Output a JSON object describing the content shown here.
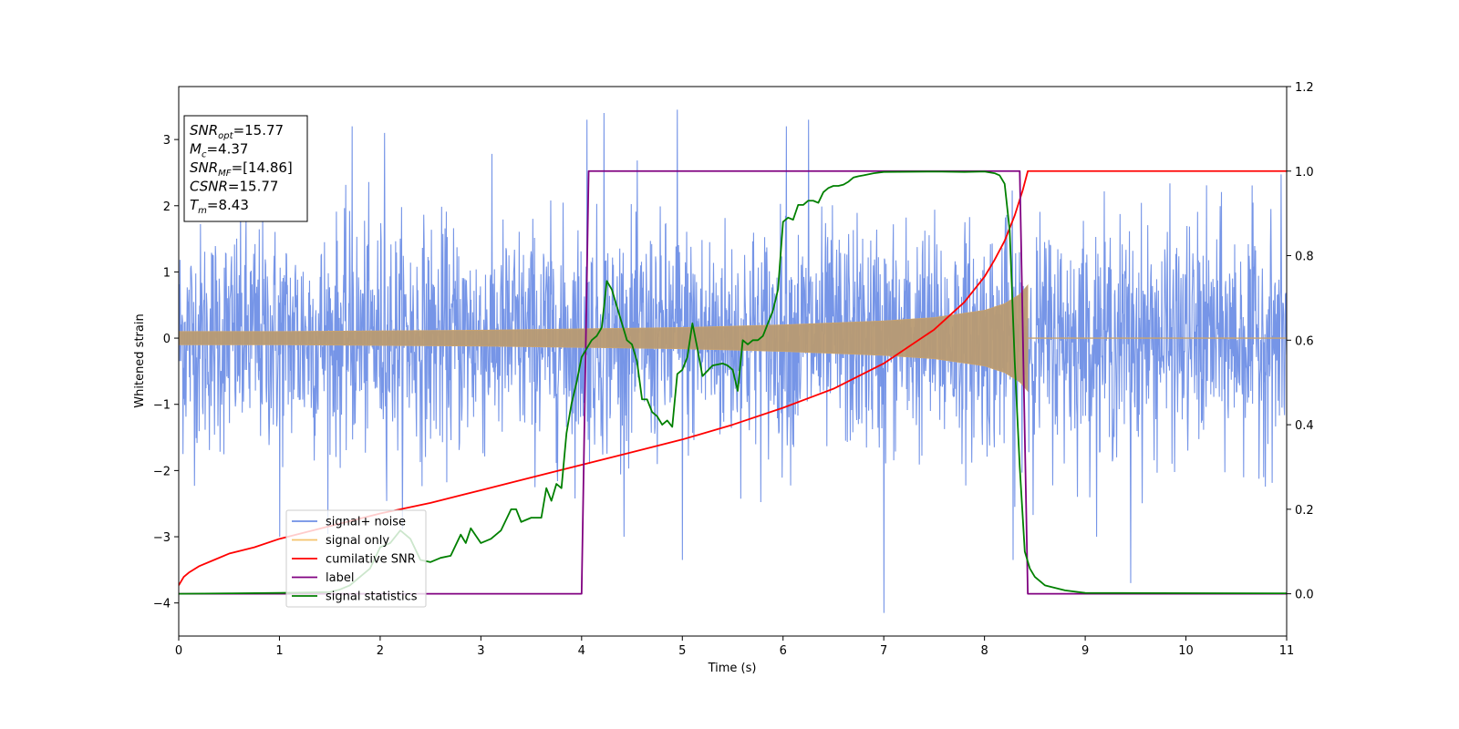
{
  "chart_data": {
    "type": "line",
    "title": "",
    "xlabel": "Time (s)",
    "ylabel": "Whitened strain",
    "y2label": "",
    "xlim": [
      0,
      11
    ],
    "ylim": [
      -4.5,
      3.8
    ],
    "y2lim": [
      -0.1,
      1.2
    ],
    "x_ticks": [
      0,
      1,
      2,
      3,
      4,
      5,
      6,
      7,
      8,
      9,
      10,
      11
    ],
    "y_ticks": [
      -4,
      -3,
      -2,
      -1,
      0,
      1,
      2,
      3
    ],
    "y2_ticks": [
      0.0,
      0.2,
      0.4,
      0.6,
      0.8,
      1.0,
      1.2
    ],
    "x_tick_labels": [
      "0",
      "1",
      "2",
      "3",
      "4",
      "5",
      "6",
      "7",
      "8",
      "9",
      "10",
      "11"
    ],
    "y_tick_labels": [
      "−4",
      "−3",
      "−2",
      "−1",
      "0",
      "1",
      "2",
      "3"
    ],
    "y2_tick_labels": [
      "0.0",
      "0.2",
      "0.4",
      "0.6",
      "0.8",
      "1.0",
      "1.2"
    ],
    "grid": false,
    "legend_position": "lower-left",
    "annotation": {
      "position": "top-left",
      "lines": [
        {
          "base": "SNR",
          "sub": "opt",
          "value": "=15.77"
        },
        {
          "base": "M",
          "sub": "c",
          "value": "=4.37"
        },
        {
          "base": "SNR",
          "sub": "MF",
          "value": "=[14.86]"
        },
        {
          "base": "CSNR",
          "sub": "",
          "value": "=15.77"
        },
        {
          "base": "T",
          "sub": "m",
          "value": "=8.43"
        }
      ]
    },
    "series": [
      {
        "name": "signal+ noise",
        "axis": "left",
        "color": "#6f8fe6",
        "kind": "noise",
        "noise_std": 0.85,
        "x_range": [
          0,
          11
        ],
        "peaks": [
          [
            1.72,
            3.2
          ],
          [
            2.04,
            3.1
          ],
          [
            4.05,
            3.3
          ],
          [
            4.22,
            3.4
          ],
          [
            4.95,
            3.45
          ],
          [
            6.25,
            3.3
          ],
          [
            6.03,
            3.2
          ],
          [
            9.45,
            -3.7
          ],
          [
            7.0,
            -4.15
          ],
          [
            8.28,
            -3.35
          ],
          [
            1.0,
            -3.0
          ],
          [
            5.0,
            -3.35
          ]
        ]
      },
      {
        "name": "signal only",
        "axis": "left",
        "color": "#f5c36b",
        "kind": "chirp",
        "x": [
          0.0,
          1.0,
          2.0,
          3.0,
          4.0,
          5.0,
          6.0,
          7.0,
          7.5,
          8.0,
          8.2,
          8.35,
          8.43
        ],
        "envelope": [
          0.1,
          0.1,
          0.11,
          0.12,
          0.14,
          0.16,
          0.2,
          0.26,
          0.31,
          0.42,
          0.52,
          0.66,
          0.8
        ],
        "after": 0.0
      },
      {
        "name": "cumilative SNR",
        "axis": "right",
        "color": "#ff0000",
        "x": [
          0.0,
          0.05,
          0.1,
          0.2,
          0.35,
          0.5,
          0.75,
          1.0,
          1.5,
          2.0,
          2.5,
          3.0,
          3.5,
          4.0,
          4.5,
          5.0,
          5.5,
          6.0,
          6.5,
          7.0,
          7.5,
          7.8,
          8.0,
          8.1,
          8.2,
          8.3,
          8.38,
          8.43,
          8.5,
          11.0
        ],
        "y": [
          0.02,
          0.04,
          0.05,
          0.065,
          0.08,
          0.095,
          0.11,
          0.13,
          0.16,
          0.19,
          0.215,
          0.245,
          0.275,
          0.305,
          0.335,
          0.365,
          0.4,
          0.44,
          0.485,
          0.545,
          0.625,
          0.69,
          0.75,
          0.79,
          0.835,
          0.895,
          0.955,
          1.0,
          1.0,
          1.0
        ]
      },
      {
        "name": "label",
        "axis": "right",
        "color": "#800080",
        "x": [
          0.0,
          4.0,
          4.07,
          8.35,
          8.43,
          11.0
        ],
        "y": [
          0.0,
          0.0,
          1.0,
          1.0,
          0.0,
          0.0
        ]
      },
      {
        "name": "signal statistics",
        "axis": "right",
        "color": "#008000",
        "x": [
          0.0,
          0.5,
          1.0,
          1.5,
          1.6,
          1.7,
          1.8,
          1.9,
          2.0,
          2.1,
          2.2,
          2.3,
          2.4,
          2.5,
          2.6,
          2.7,
          2.8,
          2.85,
          2.9,
          3.0,
          3.1,
          3.2,
          3.3,
          3.35,
          3.4,
          3.5,
          3.6,
          3.65,
          3.7,
          3.75,
          3.8,
          3.85,
          3.9,
          3.95,
          4.0,
          4.05,
          4.1,
          4.15,
          4.2,
          4.25,
          4.3,
          4.35,
          4.4,
          4.45,
          4.5,
          4.55,
          4.6,
          4.65,
          4.7,
          4.75,
          4.8,
          4.85,
          4.9,
          4.95,
          5.0,
          5.05,
          5.1,
          5.15,
          5.2,
          5.3,
          5.4,
          5.45,
          5.5,
          5.55,
          5.6,
          5.65,
          5.7,
          5.75,
          5.8,
          5.85,
          5.9,
          5.95,
          6.0,
          6.05,
          6.1,
          6.15,
          6.2,
          6.25,
          6.3,
          6.35,
          6.4,
          6.45,
          6.5,
          6.55,
          6.6,
          6.65,
          6.7,
          6.75,
          6.8,
          6.9,
          7.0,
          7.5,
          7.8,
          8.0,
          8.1,
          8.15,
          8.2,
          8.25,
          8.3,
          8.35,
          8.4,
          8.45,
          8.5,
          8.6,
          8.8,
          9.0,
          11.0
        ],
        "y": [
          0.0,
          0.001,
          0.002,
          0.004,
          0.01,
          0.02,
          0.04,
          0.06,
          0.11,
          0.12,
          0.15,
          0.13,
          0.08,
          0.075,
          0.085,
          0.09,
          0.14,
          0.12,
          0.155,
          0.12,
          0.13,
          0.15,
          0.2,
          0.2,
          0.17,
          0.18,
          0.18,
          0.25,
          0.22,
          0.26,
          0.25,
          0.38,
          0.45,
          0.5,
          0.56,
          0.58,
          0.6,
          0.61,
          0.63,
          0.74,
          0.72,
          0.68,
          0.64,
          0.6,
          0.59,
          0.55,
          0.46,
          0.46,
          0.43,
          0.42,
          0.4,
          0.41,
          0.395,
          0.52,
          0.53,
          0.56,
          0.64,
          0.58,
          0.515,
          0.54,
          0.545,
          0.54,
          0.53,
          0.48,
          0.6,
          0.59,
          0.6,
          0.6,
          0.61,
          0.64,
          0.67,
          0.72,
          0.88,
          0.89,
          0.885,
          0.92,
          0.92,
          0.93,
          0.93,
          0.925,
          0.95,
          0.96,
          0.965,
          0.965,
          0.968,
          0.975,
          0.985,
          0.988,
          0.99,
          0.995,
          0.998,
          0.999,
          0.998,
          0.999,
          0.995,
          0.99,
          0.97,
          0.86,
          0.55,
          0.3,
          0.1,
          0.06,
          0.04,
          0.02,
          0.008,
          0.002,
          0.001
        ]
      }
    ]
  }
}
